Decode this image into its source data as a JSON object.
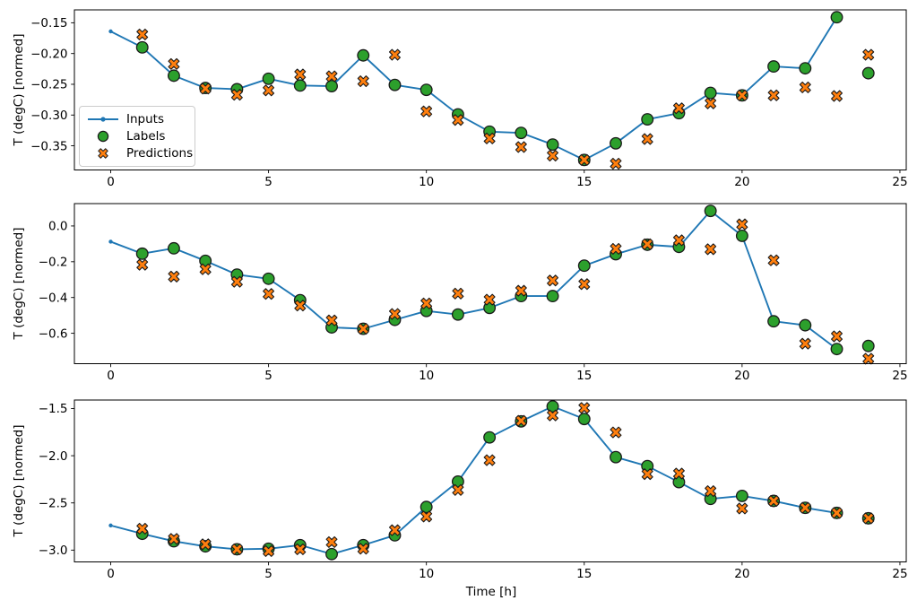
{
  "figure": {
    "background": "#ffffff",
    "axis_color": "#000000",
    "marker_edge_color": "#1a1a1a"
  },
  "chart_data": [
    {
      "type": "line",
      "title": "",
      "ylabel": "T (degC) [normed]",
      "xlabel": "",
      "xlim": [
        -1.15,
        25.2
      ],
      "ylim": [
        -0.389,
        -0.129
      ],
      "xticks": [
        0,
        5,
        10,
        15,
        20,
        25
      ],
      "xtick_labels": [
        "0",
        "5",
        "10",
        "15",
        "20",
        "25"
      ],
      "ytick_values": [
        -0.15,
        -0.2,
        -0.25,
        -0.3,
        -0.35
      ],
      "ytick_labels": [
        "−0.15",
        "−0.20",
        "−0.25",
        "−0.30",
        "−0.35"
      ],
      "grid": false,
      "legend_position": "center-left",
      "series": [
        {
          "name": "Inputs",
          "marker": "line-dot",
          "color": "#1f77b4",
          "x": [
            0,
            1,
            2,
            3,
            4,
            5,
            6,
            7,
            8,
            9,
            10,
            11,
            12,
            13,
            14,
            15,
            16,
            17,
            18,
            19,
            20,
            21,
            22,
            23
          ],
          "y": [
            -0.164,
            -0.19,
            -0.236,
            -0.256,
            -0.258,
            -0.241,
            -0.252,
            -0.253,
            -0.203,
            -0.251,
            -0.259,
            -0.299,
            -0.327,
            -0.329,
            -0.348,
            -0.373,
            -0.346,
            -0.307,
            -0.297,
            -0.264,
            -0.268,
            -0.221,
            -0.224,
            -0.141
          ]
        },
        {
          "name": "Labels",
          "marker": "circle",
          "color": "#2ca02c",
          "x": [
            1,
            2,
            3,
            4,
            5,
            6,
            7,
            8,
            9,
            10,
            11,
            12,
            13,
            14,
            15,
            16,
            17,
            18,
            19,
            20,
            21,
            22,
            23,
            24
          ],
          "y": [
            -0.19,
            -0.236,
            -0.256,
            -0.258,
            -0.241,
            -0.252,
            -0.253,
            -0.203,
            -0.251,
            -0.259,
            -0.299,
            -0.327,
            -0.329,
            -0.348,
            -0.373,
            -0.346,
            -0.307,
            -0.297,
            -0.264,
            -0.268,
            -0.221,
            -0.224,
            -0.141,
            -0.232
          ]
        },
        {
          "name": "Predictions",
          "marker": "X",
          "color": "#ff7f0e",
          "x": [
            1,
            2,
            3,
            4,
            5,
            6,
            7,
            8,
            9,
            10,
            11,
            12,
            13,
            14,
            15,
            16,
            17,
            18,
            19,
            20,
            21,
            22,
            23,
            24
          ],
          "y": [
            -0.169,
            -0.217,
            -0.257,
            -0.267,
            -0.26,
            -0.234,
            -0.237,
            -0.245,
            -0.202,
            -0.294,
            -0.308,
            -0.338,
            -0.352,
            -0.366,
            -0.373,
            -0.379,
            -0.339,
            -0.289,
            -0.281,
            -0.268,
            -0.268,
            -0.255,
            -0.269,
            -0.202
          ]
        }
      ]
    },
    {
      "type": "line",
      "title": "",
      "ylabel": "T (degC) [normed]",
      "xlabel": "",
      "xlim": [
        -1.15,
        25.2
      ],
      "ylim": [
        -0.77,
        0.125
      ],
      "xticks": [
        0,
        5,
        10,
        15,
        20,
        25
      ],
      "xtick_labels": [
        "0",
        "5",
        "10",
        "15",
        "20",
        "25"
      ],
      "ytick_values": [
        0.0,
        -0.2,
        -0.4,
        -0.6
      ],
      "ytick_labels": [
        "0.0",
        "−0.2",
        "−0.4",
        "−0.6"
      ],
      "grid": false,
      "series": [
        {
          "name": "Inputs",
          "marker": "line-dot",
          "color": "#1f77b4",
          "x": [
            0,
            1,
            2,
            3,
            4,
            5,
            6,
            7,
            8,
            9,
            10,
            11,
            12,
            13,
            14,
            15,
            16,
            17,
            18,
            19,
            20,
            21,
            22,
            23
          ],
          "y": [
            -0.088,
            -0.155,
            -0.125,
            -0.195,
            -0.272,
            -0.295,
            -0.415,
            -0.567,
            -0.575,
            -0.525,
            -0.475,
            -0.495,
            -0.458,
            -0.392,
            -0.392,
            -0.222,
            -0.158,
            -0.105,
            -0.117,
            0.084,
            -0.055,
            -0.533,
            -0.555,
            -0.688
          ]
        },
        {
          "name": "Labels",
          "marker": "circle",
          "color": "#2ca02c",
          "x": [
            1,
            2,
            3,
            4,
            5,
            6,
            7,
            8,
            9,
            10,
            11,
            12,
            13,
            14,
            15,
            16,
            17,
            18,
            19,
            20,
            21,
            22,
            23,
            24
          ],
          "y": [
            -0.155,
            -0.125,
            -0.195,
            -0.272,
            -0.295,
            -0.415,
            -0.567,
            -0.575,
            -0.525,
            -0.475,
            -0.495,
            -0.458,
            -0.392,
            -0.392,
            -0.222,
            -0.158,
            -0.105,
            -0.117,
            0.084,
            -0.055,
            -0.533,
            -0.555,
            -0.688,
            -0.671
          ]
        },
        {
          "name": "Predictions",
          "marker": "X",
          "color": "#ff7f0e",
          "x": [
            1,
            2,
            3,
            4,
            5,
            6,
            7,
            8,
            9,
            10,
            11,
            12,
            13,
            14,
            15,
            16,
            17,
            18,
            19,
            20,
            21,
            22,
            23,
            24
          ],
          "y": [
            -0.217,
            -0.283,
            -0.242,
            -0.312,
            -0.38,
            -0.445,
            -0.528,
            -0.575,
            -0.492,
            -0.433,
            -0.378,
            -0.412,
            -0.362,
            -0.305,
            -0.325,
            -0.128,
            -0.102,
            -0.08,
            -0.13,
            0.009,
            -0.192,
            -0.658,
            -0.617,
            -0.742
          ]
        }
      ]
    },
    {
      "type": "line",
      "title": "",
      "ylabel": "T (degC) [normed]",
      "xlabel": "Time [h]",
      "xlim": [
        -1.15,
        25.2
      ],
      "ylim": [
        -3.125,
        -1.41
      ],
      "xticks": [
        0,
        5,
        10,
        15,
        20,
        25
      ],
      "xtick_labels": [
        "0",
        "5",
        "10",
        "15",
        "20",
        "25"
      ],
      "ytick_values": [
        -1.5,
        -2.0,
        -2.5,
        -3.0
      ],
      "ytick_labels": [
        "−1.5",
        "−2.0",
        "−2.5",
        "−3.0"
      ],
      "grid": false,
      "series": [
        {
          "name": "Inputs",
          "marker": "line-dot",
          "color": "#1f77b4",
          "x": [
            0,
            1,
            2,
            3,
            4,
            5,
            6,
            7,
            8,
            9,
            10,
            11,
            12,
            13,
            14,
            15,
            16,
            17,
            18,
            19,
            20,
            21,
            22,
            23
          ],
          "y": [
            -2.739,
            -2.827,
            -2.906,
            -2.96,
            -2.991,
            -2.985,
            -2.947,
            -3.042,
            -2.947,
            -2.843,
            -2.543,
            -2.274,
            -1.806,
            -1.636,
            -1.478,
            -1.611,
            -2.015,
            -2.11,
            -2.28,
            -2.457,
            -2.426,
            -2.479,
            -2.552,
            -2.606
          ]
        },
        {
          "name": "Labels",
          "marker": "circle",
          "color": "#2ca02c",
          "x": [
            1,
            2,
            3,
            4,
            5,
            6,
            7,
            8,
            9,
            10,
            11,
            12,
            13,
            14,
            15,
            16,
            17,
            18,
            19,
            20,
            21,
            22,
            23,
            24
          ],
          "y": [
            -2.827,
            -2.906,
            -2.96,
            -2.991,
            -2.985,
            -2.947,
            -3.042,
            -2.947,
            -2.843,
            -2.543,
            -2.274,
            -1.806,
            -1.636,
            -1.478,
            -1.611,
            -2.015,
            -2.11,
            -2.28,
            -2.457,
            -2.426,
            -2.479,
            -2.552,
            -2.606,
            -2.663
          ]
        },
        {
          "name": "Predictions",
          "marker": "X",
          "color": "#ff7f0e",
          "x": [
            1,
            2,
            3,
            4,
            5,
            6,
            7,
            8,
            9,
            10,
            11,
            12,
            13,
            14,
            15,
            16,
            17,
            18,
            19,
            20,
            21,
            22,
            23,
            24
          ],
          "y": [
            -2.773,
            -2.881,
            -2.938,
            -2.991,
            -3.01,
            -2.991,
            -2.915,
            -2.985,
            -2.789,
            -2.644,
            -2.363,
            -2.047,
            -1.63,
            -1.573,
            -1.494,
            -1.753,
            -2.195,
            -2.189,
            -2.375,
            -2.559,
            -2.479,
            -2.552,
            -2.606,
            -2.663
          ]
        }
      ]
    }
  ]
}
